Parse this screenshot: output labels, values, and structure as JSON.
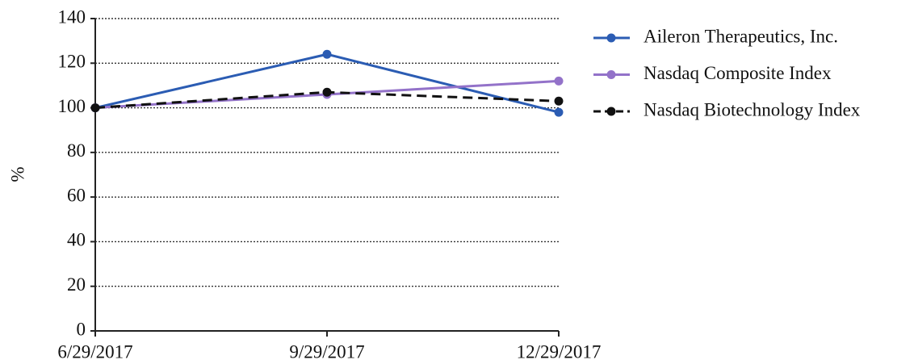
{
  "chart_data": {
    "type": "line",
    "y_label": "%",
    "categories": [
      "6/29/2017",
      "9/29/2017",
      "12/29/2017"
    ],
    "series": [
      {
        "name": "Aileron Therapeutics, Inc.",
        "color": "#2b5cb3",
        "line_style": "solid",
        "values": [
          100,
          124,
          98
        ]
      },
      {
        "name": "Nasdaq Composite Index",
        "color": "#9372c9",
        "line_style": "solid",
        "values": [
          100,
          106,
          112
        ]
      },
      {
        "name": "Nasdaq Biotechnology Index",
        "color": "#111111",
        "line_style": "dashed",
        "values": [
          100,
          107,
          103
        ]
      }
    ],
    "ylim": [
      0,
      140
    ],
    "yticks": [
      0,
      20,
      40,
      60,
      80,
      100,
      120,
      140
    ],
    "grid": true
  }
}
